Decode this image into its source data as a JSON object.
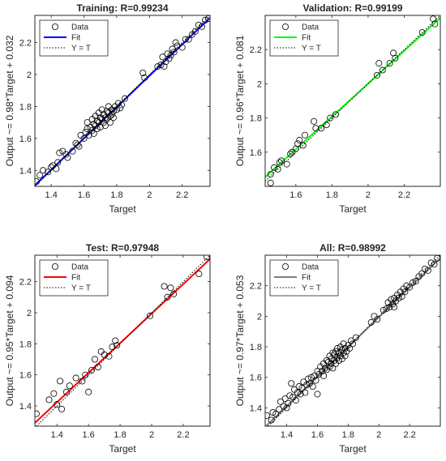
{
  "colors": {
    "training_fit": "#0000ff",
    "validation_fit": "#00ff00",
    "test_fit": "#ff0000",
    "all_fit": "#7f7f7f",
    "data_marker": "#000000",
    "identity_line": "#000000"
  },
  "chart_data": [
    {
      "type": "scatter",
      "title": "Training: R=0.99234",
      "xlabel": "Target",
      "ylabel": "Output ~= 0.98*Target + 0.032",
      "xlim": [
        1.3,
        2.37
      ],
      "ylim": [
        1.3,
        2.37
      ],
      "xticks": [
        1.4,
        1.6,
        1.8,
        2,
        2.2
      ],
      "yticks": [
        1.4,
        1.6,
        1.8,
        2,
        2.2
      ],
      "xtick_labels": [
        "1.4",
        "1.6",
        "1.8",
        "2",
        "2.2"
      ],
      "ytick_labels": [
        "1.4",
        "1.6",
        "1.8",
        "2",
        "2.2"
      ],
      "legend_position": "top-left",
      "legend": [
        "Data",
        "Fit",
        "Y = T"
      ],
      "fit": {
        "slope": 0.98,
        "intercept": 0.032,
        "color": "#0000ff"
      },
      "series": [
        {
          "name": "Data",
          "points": [
            [
              1.31,
              1.33
            ],
            [
              1.33,
              1.37
            ],
            [
              1.35,
              1.4
            ],
            [
              1.38,
              1.39
            ],
            [
              1.4,
              1.42
            ],
            [
              1.41,
              1.43
            ],
            [
              1.43,
              1.41
            ],
            [
              1.44,
              1.45
            ],
            [
              1.45,
              1.51
            ],
            [
              1.47,
              1.52
            ],
            [
              1.49,
              1.5
            ],
            [
              1.5,
              1.48
            ],
            [
              1.53,
              1.52
            ],
            [
              1.55,
              1.57
            ],
            [
              1.56,
              1.56
            ],
            [
              1.57,
              1.55
            ],
            [
              1.58,
              1.62
            ],
            [
              1.6,
              1.6
            ],
            [
              1.61,
              1.64
            ],
            [
              1.62,
              1.66
            ],
            [
              1.62,
              1.7
            ],
            [
              1.63,
              1.62
            ],
            [
              1.64,
              1.67
            ],
            [
              1.65,
              1.65
            ],
            [
              1.65,
              1.72
            ],
            [
              1.66,
              1.69
            ],
            [
              1.66,
              1.63
            ],
            [
              1.67,
              1.68
            ],
            [
              1.67,
              1.74
            ],
            [
              1.68,
              1.66
            ],
            [
              1.68,
              1.71
            ],
            [
              1.69,
              1.7
            ],
            [
              1.69,
              1.76
            ],
            [
              1.7,
              1.67
            ],
            [
              1.7,
              1.73
            ],
            [
              1.71,
              1.72
            ],
            [
              1.71,
              1.78
            ],
            [
              1.72,
              1.7
            ],
            [
              1.72,
              1.75
            ],
            [
              1.73,
              1.73
            ],
            [
              1.73,
              1.68
            ],
            [
              1.74,
              1.77
            ],
            [
              1.74,
              1.72
            ],
            [
              1.75,
              1.76
            ],
            [
              1.75,
              1.8
            ],
            [
              1.76,
              1.74
            ],
            [
              1.76,
              1.7
            ],
            [
              1.77,
              1.78
            ],
            [
              1.77,
              1.75
            ],
            [
              1.78,
              1.77
            ],
            [
              1.78,
              1.73
            ],
            [
              1.79,
              1.8
            ],
            [
              1.8,
              1.78
            ],
            [
              1.81,
              1.82
            ],
            [
              1.82,
              1.79
            ],
            [
              1.83,
              1.81
            ],
            [
              1.85,
              1.85
            ],
            [
              1.96,
              2.01
            ],
            [
              1.97,
              1.98
            ],
            [
              2.05,
              2.05
            ],
            [
              2.07,
              2.06
            ],
            [
              2.08,
              2.11
            ],
            [
              2.09,
              2.05
            ],
            [
              2.1,
              2.08
            ],
            [
              2.11,
              2.13
            ],
            [
              2.12,
              2.1
            ],
            [
              2.13,
              2.12
            ],
            [
              2.14,
              2.16
            ],
            [
              2.15,
              2.14
            ],
            [
              2.16,
              2.2
            ],
            [
              2.17,
              2.18
            ],
            [
              2.2,
              2.17
            ],
            [
              2.22,
              2.22
            ],
            [
              2.24,
              2.22
            ],
            [
              2.26,
              2.25
            ],
            [
              2.28,
              2.27
            ],
            [
              2.3,
              2.31
            ],
            [
              2.32,
              2.3
            ],
            [
              2.34,
              2.34
            ],
            [
              2.36,
              2.35
            ]
          ]
        }
      ]
    },
    {
      "type": "scatter",
      "title": "Validation: R=0.99199",
      "xlabel": "Target",
      "ylabel": "Output ~= 0.96*Target + 0.081",
      "xlim": [
        1.43,
        2.4
      ],
      "ylim": [
        1.4,
        2.4
      ],
      "xticks": [
        1.6,
        1.8,
        2,
        2.2
      ],
      "yticks": [
        1.6,
        1.8,
        2,
        2.2
      ],
      "xtick_labels": [
        "1.6",
        "1.8",
        "2",
        "2.2"
      ],
      "ytick_labels": [
        "1.6",
        "1.8",
        "2",
        "2.2"
      ],
      "legend_position": "top-left",
      "legend": [
        "Data",
        "Fit",
        "Y = T"
      ],
      "fit": {
        "slope": 0.96,
        "intercept": 0.081,
        "color": "#00ff00"
      },
      "series": [
        {
          "name": "Data",
          "points": [
            [
              1.46,
              1.42
            ],
            [
              1.46,
              1.47
            ],
            [
              1.48,
              1.51
            ],
            [
              1.5,
              1.5
            ],
            [
              1.51,
              1.54
            ],
            [
              1.52,
              1.55
            ],
            [
              1.55,
              1.53
            ],
            [
              1.57,
              1.59
            ],
            [
              1.58,
              1.6
            ],
            [
              1.6,
              1.62
            ],
            [
              1.61,
              1.65
            ],
            [
              1.62,
              1.67
            ],
            [
              1.64,
              1.64
            ],
            [
              1.65,
              1.7
            ],
            [
              1.7,
              1.78
            ],
            [
              1.71,
              1.74
            ],
            [
              1.74,
              1.74
            ],
            [
              1.77,
              1.76
            ],
            [
              1.79,
              1.8
            ],
            [
              1.82,
              1.82
            ],
            [
              2.05,
              2.05
            ],
            [
              2.06,
              2.12
            ],
            [
              2.08,
              2.08
            ],
            [
              2.12,
              2.12
            ],
            [
              2.14,
              2.18
            ],
            [
              2.15,
              2.15
            ],
            [
              2.3,
              2.3
            ],
            [
              2.36,
              2.38
            ],
            [
              2.37,
              2.35
            ]
          ]
        }
      ]
    },
    {
      "type": "scatter",
      "title": "Test: R=0.97948",
      "xlabel": "Target",
      "ylabel": "Output ~= 0.95*Target + 0.094",
      "xlim": [
        1.26,
        2.37
      ],
      "ylim": [
        1.27,
        2.37
      ],
      "xticks": [
        1.4,
        1.6,
        1.8,
        2,
        2.2
      ],
      "yticks": [
        1.4,
        1.6,
        1.8,
        2,
        2.2
      ],
      "xtick_labels": [
        "1.4",
        "1.6",
        "1.8",
        "2",
        "2.2"
      ],
      "ytick_labels": [
        "1.4",
        "1.6",
        "1.8",
        "2",
        "2.2"
      ],
      "legend_position": "top-left",
      "legend": [
        "Data",
        "Fit",
        "Y = T"
      ],
      "fit": {
        "slope": 0.95,
        "intercept": 0.094,
        "color": "#ff0000"
      },
      "series": [
        {
          "name": "Data",
          "points": [
            [
              1.27,
              1.35
            ],
            [
              1.35,
              1.44
            ],
            [
              1.38,
              1.48
            ],
            [
              1.4,
              1.41
            ],
            [
              1.42,
              1.56
            ],
            [
              1.43,
              1.38
            ],
            [
              1.46,
              1.49
            ],
            [
              1.48,
              1.53
            ],
            [
              1.52,
              1.58
            ],
            [
              1.56,
              1.56
            ],
            [
              1.58,
              1.6
            ],
            [
              1.6,
              1.49
            ],
            [
              1.62,
              1.63
            ],
            [
              1.64,
              1.7
            ],
            [
              1.66,
              1.65
            ],
            [
              1.68,
              1.75
            ],
            [
              1.7,
              1.73
            ],
            [
              1.73,
              1.72
            ],
            [
              1.75,
              1.78
            ],
            [
              1.77,
              1.82
            ],
            [
              1.78,
              1.79
            ],
            [
              1.99,
              1.98
            ],
            [
              2.08,
              2.17
            ],
            [
              2.1,
              2.1
            ],
            [
              2.12,
              2.16
            ],
            [
              2.14,
              2.12
            ],
            [
              2.3,
              2.25
            ],
            [
              2.35,
              2.36
            ]
          ]
        }
      ]
    },
    {
      "type": "scatter",
      "title": "All: R=0.98992",
      "xlabel": "Target",
      "ylabel": "Output ~= 0.97*Target + 0.053",
      "xlim": [
        1.26,
        2.4
      ],
      "ylim": [
        1.28,
        2.4
      ],
      "xticks": [
        1.4,
        1.6,
        1.8,
        2,
        2.2
      ],
      "yticks": [
        1.4,
        1.6,
        1.8,
        2,
        2.2
      ],
      "xtick_labels": [
        "1.4",
        "1.6",
        "1.8",
        "2",
        "2.2"
      ],
      "ytick_labels": [
        "1.4",
        "1.6",
        "1.8",
        "2",
        "2.2"
      ],
      "legend_position": "top-left",
      "legend": [
        "Data",
        "Fit",
        "Y = T"
      ],
      "fit": {
        "slope": 0.97,
        "intercept": 0.053,
        "color": "#7f7f7f"
      },
      "series": [
        {
          "name": "Data",
          "points": [
            [
              1.27,
              1.35
            ],
            [
              1.3,
              1.32
            ],
            [
              1.31,
              1.37
            ],
            [
              1.33,
              1.36
            ],
            [
              1.35,
              1.39
            ],
            [
              1.36,
              1.44
            ],
            [
              1.38,
              1.41
            ],
            [
              1.39,
              1.46
            ],
            [
              1.4,
              1.4
            ],
            [
              1.41,
              1.43
            ],
            [
              1.42,
              1.48
            ],
            [
              1.43,
              1.56
            ],
            [
              1.44,
              1.47
            ],
            [
              1.45,
              1.52
            ],
            [
              1.46,
              1.45
            ],
            [
              1.47,
              1.5
            ],
            [
              1.48,
              1.54
            ],
            [
              1.49,
              1.49
            ],
            [
              1.5,
              1.53
            ],
            [
              1.51,
              1.57
            ],
            [
              1.52,
              1.5
            ],
            [
              1.53,
              1.55
            ],
            [
              1.54,
              1.59
            ],
            [
              1.55,
              1.56
            ],
            [
              1.56,
              1.6
            ],
            [
              1.57,
              1.54
            ],
            [
              1.58,
              1.61
            ],
            [
              1.59,
              1.58
            ],
            [
              1.6,
              1.64
            ],
            [
              1.6,
              1.49
            ],
            [
              1.61,
              1.62
            ],
            [
              1.62,
              1.67
            ],
            [
              1.63,
              1.64
            ],
            [
              1.64,
              1.69
            ],
            [
              1.64,
              1.61
            ],
            [
              1.65,
              1.66
            ],
            [
              1.66,
              1.71
            ],
            [
              1.66,
              1.65
            ],
            [
              1.67,
              1.7
            ],
            [
              1.68,
              1.67
            ],
            [
              1.68,
              1.74
            ],
            [
              1.69,
              1.69
            ],
            [
              1.69,
              1.72
            ],
            [
              1.7,
              1.66
            ],
            [
              1.7,
              1.76
            ],
            [
              1.71,
              1.71
            ],
            [
              1.71,
              1.75
            ],
            [
              1.72,
              1.69
            ],
            [
              1.72,
              1.77
            ],
            [
              1.73,
              1.73
            ],
            [
              1.73,
              1.79
            ],
            [
              1.74,
              1.71
            ],
            [
              1.74,
              1.76
            ],
            [
              1.75,
              1.74
            ],
            [
              1.75,
              1.8
            ],
            [
              1.76,
              1.72
            ],
            [
              1.76,
              1.78
            ],
            [
              1.77,
              1.76
            ],
            [
              1.77,
              1.82
            ],
            [
              1.78,
              1.74
            ],
            [
              1.78,
              1.79
            ],
            [
              1.79,
              1.77
            ],
            [
              1.8,
              1.81
            ],
            [
              1.81,
              1.79
            ],
            [
              1.82,
              1.84
            ],
            [
              1.83,
              1.82
            ],
            [
              1.85,
              1.86
            ],
            [
              1.95,
              1.96
            ],
            [
              1.97,
              2.0
            ],
            [
              1.99,
              1.98
            ],
            [
              2.03,
              2.04
            ],
            [
              2.05,
              2.05
            ],
            [
              2.06,
              2.09
            ],
            [
              2.07,
              2.06
            ],
            [
              2.08,
              2.11
            ],
            [
              2.09,
              2.08
            ],
            [
              2.1,
              2.06
            ],
            [
              2.1,
              2.12
            ],
            [
              2.11,
              2.1
            ],
            [
              2.12,
              2.14
            ],
            [
              2.13,
              2.12
            ],
            [
              2.14,
              2.16
            ],
            [
              2.15,
              2.13
            ],
            [
              2.16,
              2.18
            ],
            [
              2.17,
              2.16
            ],
            [
              2.18,
              2.2
            ],
            [
              2.2,
              2.19
            ],
            [
              2.22,
              2.22
            ],
            [
              2.24,
              2.23
            ],
            [
              2.26,
              2.26
            ],
            [
              2.28,
              2.28
            ],
            [
              2.3,
              2.31
            ],
            [
              2.32,
              2.3
            ],
            [
              2.34,
              2.35
            ],
            [
              2.36,
              2.34
            ],
            [
              2.38,
              2.38
            ]
          ]
        }
      ]
    }
  ]
}
